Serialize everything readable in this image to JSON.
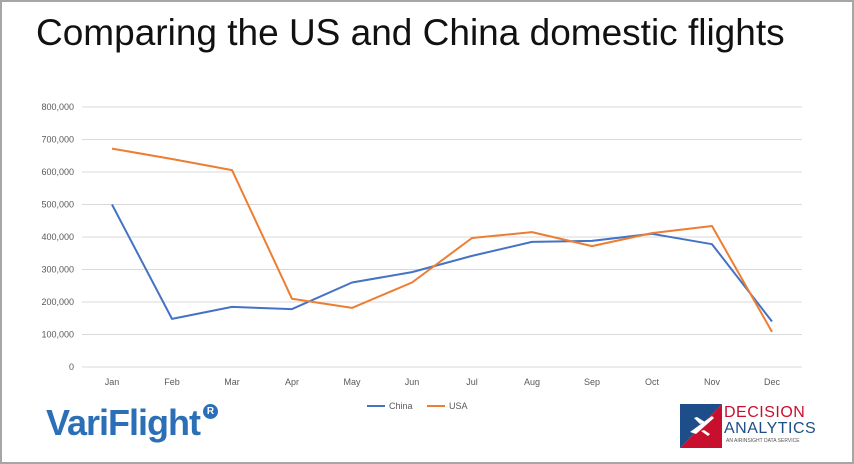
{
  "title": "Comparing the US and China domestic flights",
  "chart_data": {
    "type": "line",
    "categories": [
      "Jan",
      "Feb",
      "Mar",
      "Apr",
      "May",
      "Jun",
      "Jul",
      "Aug",
      "Sep",
      "Oct",
      "Nov",
      "Dec"
    ],
    "series": [
      {
        "name": "China",
        "color": "#4472c4",
        "values": [
          500000,
          148000,
          185000,
          178000,
          260000,
          292000,
          342000,
          385000,
          388000,
          410000,
          378000,
          140000
        ]
      },
      {
        "name": "USA",
        "color": "#ed7d31",
        "values": [
          672000,
          640000,
          606000,
          210000,
          182000,
          260000,
          397000,
          415000,
          372000,
          412000,
          434000,
          108000
        ]
      }
    ],
    "yticks": [
      "0",
      "100,000",
      "200,000",
      "300,000",
      "400,000",
      "500,000",
      "600,000",
      "700,000",
      "800,000"
    ],
    "ylim": [
      0,
      800000
    ],
    "grid": true,
    "legend": "bottom"
  },
  "logos": {
    "variflight": {
      "text": "VariFlight",
      "reg": "R"
    },
    "decision_analytics": {
      "line1": "DECISION",
      "line2": "ANALYTICS",
      "tagline": "AN AIRINSIGHT DATA SERVICE"
    }
  }
}
